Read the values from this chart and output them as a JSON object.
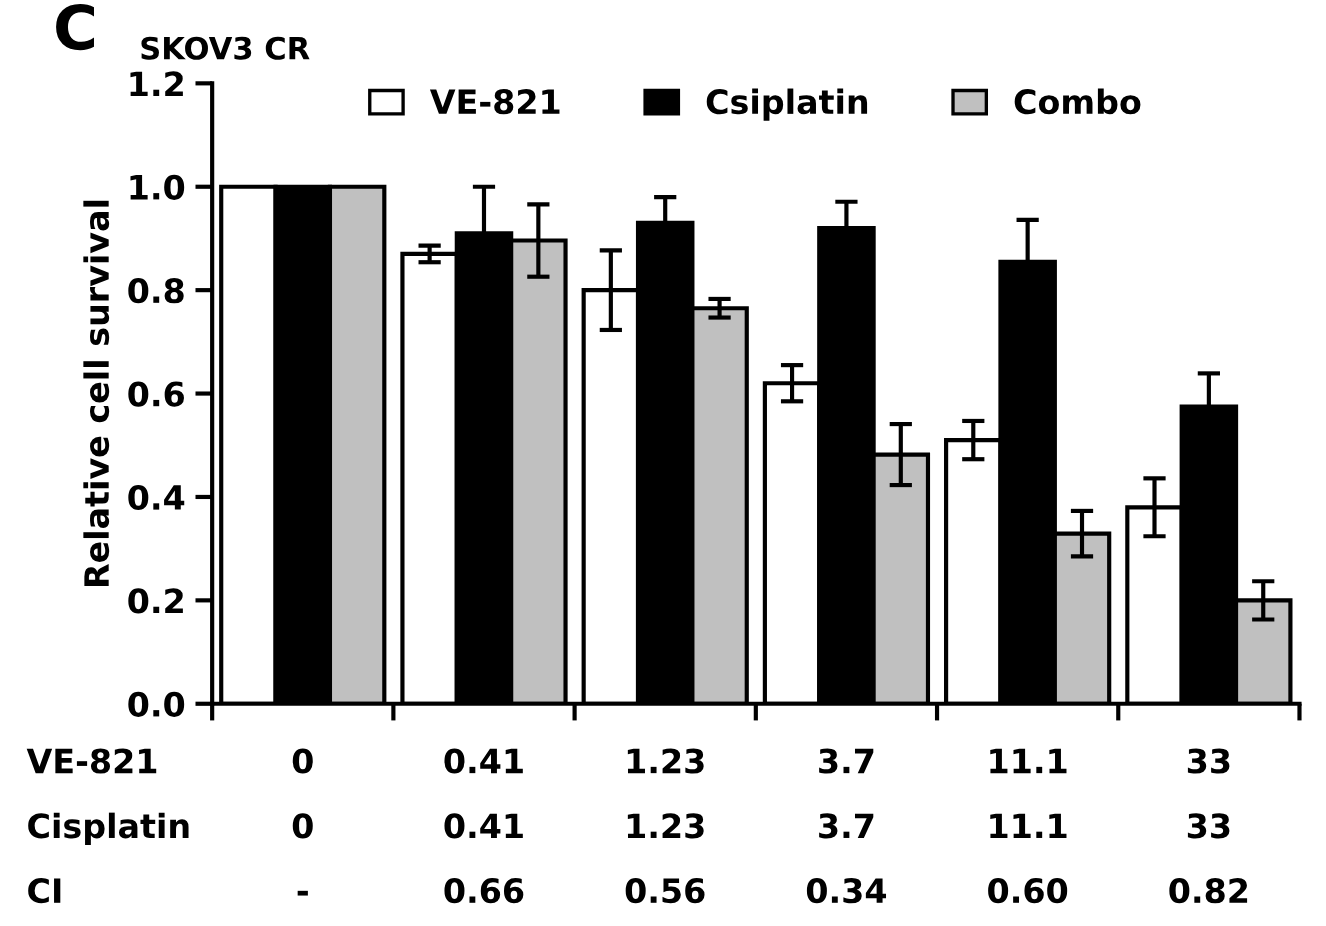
{
  "chart_data": {
    "type": "bar",
    "title": "SKOV3 CR",
    "ylabel": "Relative cell survival",
    "categories": [
      "0",
      "0.41",
      "1.23",
      "3.7",
      "11.1",
      "33"
    ],
    "series": [
      {
        "name": "VE-821",
        "color": "#ffffff",
        "values": [
          1.0,
          0.87,
          0.8,
          0.62,
          0.51,
          0.38
        ],
        "errors": [
          null,
          0.016,
          0.077,
          0.035,
          0.037,
          0.056
        ]
      },
      {
        "name": "Csiplatin",
        "color": "#000000",
        "values": [
          1.0,
          0.91,
          0.93,
          0.92,
          0.855,
          0.575
        ],
        "errors": [
          null,
          0.09,
          0.05,
          0.051,
          0.081,
          0.064
        ]
      },
      {
        "name": "Combo",
        "color": "#c0c0c0",
        "values": [
          1.0,
          0.896,
          0.765,
          0.482,
          0.329,
          0.2
        ],
        "errors": [
          null,
          0.07,
          0.018,
          0.059,
          0.044,
          0.037
        ]
      }
    ],
    "ylim": [
      0,
      1.2
    ],
    "yticks": [
      {
        "value": 0,
        "label": "0.0"
      },
      {
        "value": 0.2,
        "label": "0.2"
      },
      {
        "value": 0.4,
        "label": "0.4"
      },
      {
        "value": 0.6,
        "label": "0.6"
      },
      {
        "value": 0.8,
        "label": "0.8"
      },
      {
        "value": 1.0,
        "label": "1.0"
      },
      {
        "value": 1.2,
        "label": "1.2"
      }
    ],
    "grid": false,
    "legend": "top",
    "annotations": [
      "C",
      "VE-821",
      "Cisplatin",
      "0",
      "0.41",
      "1.23",
      "3.7",
      "11.1",
      "33",
      "CI",
      "-",
      "0.66",
      "0.56",
      "0.34",
      "0.60",
      "0.82"
    ]
  }
}
